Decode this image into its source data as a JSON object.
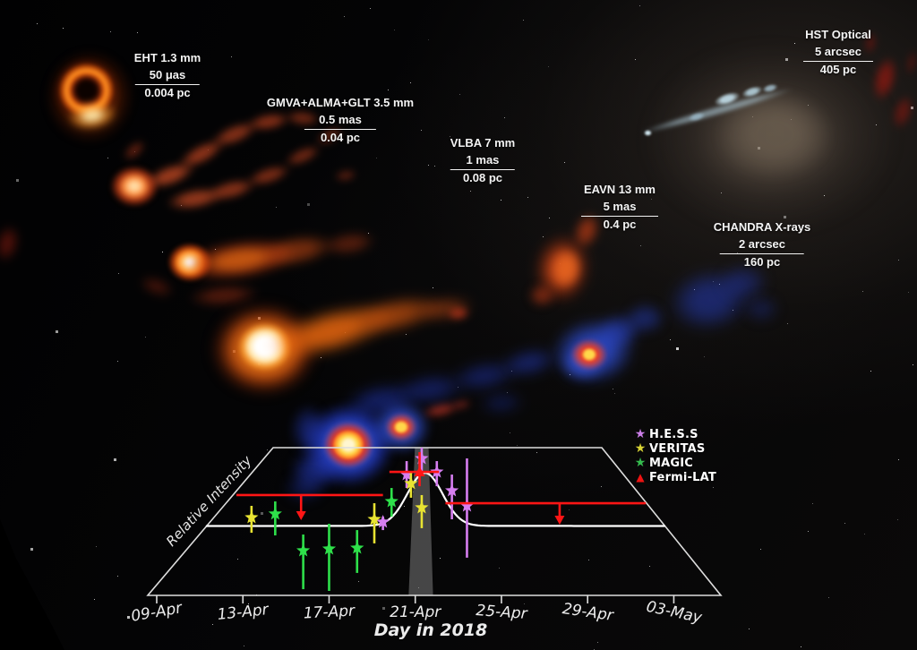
{
  "figure": {
    "xaxis_title": "Day in 2018",
    "yaxis_title": "Relative Intensity"
  },
  "scale_labels": [
    {
      "id": "eht",
      "title": "EHT 1.3 mm",
      "size": "50 μas",
      "physical": "0.004 pc"
    },
    {
      "id": "gmva",
      "title": "GMVA+ALMA+GLT 3.5 mm",
      "size": "0.5 mas",
      "physical": "0.04 pc"
    },
    {
      "id": "vlba",
      "title": "VLBA 7 mm",
      "size": "1 mas",
      "physical": "0.08 pc"
    },
    {
      "id": "eavn",
      "title": "EAVN 13 mm",
      "size": "5 mas",
      "physical": "0.4 pc"
    },
    {
      "id": "chandra",
      "title": "CHANDRA X-rays",
      "size": "2 arcsec",
      "physical": "160 pc"
    },
    {
      "id": "hst",
      "title": "HST Optical",
      "size": "5 arcsec",
      "physical": "405 pc"
    }
  ],
  "legend": [
    {
      "label": "H.E.S.S",
      "marker": "star",
      "color": "#cb7ee8"
    },
    {
      "label": "VERITAS",
      "marker": "star",
      "color": "#d8d435"
    },
    {
      "label": "MAGIC",
      "marker": "star",
      "color": "#35bb4e"
    },
    {
      "label": "Fermi-LAT",
      "marker": "triangle",
      "color": "#ee1312"
    }
  ],
  "chart_data": {
    "type": "line",
    "xlabel": "Day in 2018",
    "ylabel": "Relative Intensity",
    "x_tick_labels": [
      "09-Apr",
      "13-Apr",
      "17-Apr",
      "21-Apr",
      "25-Apr",
      "29-Apr",
      "03-May"
    ],
    "x_tick_days": [
      9,
      13,
      17,
      21,
      25,
      29,
      33
    ],
    "x_range_days": [
      8.6,
      35.2
    ],
    "y_range": [
      0,
      1
    ],
    "grid": false,
    "legend_position": "upper right",
    "highlight_band_days": [
      20.9,
      21.7
    ],
    "light_curve": {
      "color": "#ffffff",
      "baseline": 0.47,
      "peak_amplitude": 0.36,
      "peak_day": 21.45,
      "sigma_days": 1.15
    },
    "series": [
      {
        "name": "H.E.S.S",
        "marker": "star",
        "color": "#d67ef0",
        "points": [
          {
            "day": 19.5,
            "v": 0.497,
            "lo": 0.442,
            "hi": 0.533
          },
          {
            "day": 20.6,
            "v": 0.818,
            "lo": 0.727,
            "hi": 0.909
          },
          {
            "day": 21.3,
            "v": 0.927,
            "lo": 0.83,
            "hi": 1.0
          },
          {
            "day": 22.0,
            "v": 0.836,
            "lo": 0.739,
            "hi": 0.909
          },
          {
            "day": 22.7,
            "v": 0.709,
            "lo": 0.515,
            "hi": 0.818
          },
          {
            "day": 23.4,
            "v": 0.606,
            "lo": 0.255,
            "hi": 0.927
          }
        ]
      },
      {
        "name": "VERITAS",
        "marker": "star",
        "color": "#e8e332",
        "points": [
          {
            "day": 13.4,
            "v": 0.527,
            "lo": 0.424,
            "hi": 0.606
          },
          {
            "day": 19.1,
            "v": 0.515,
            "lo": 0.352,
            "hi": 0.624
          },
          {
            "day": 20.8,
            "v": 0.758,
            "lo": 0.661,
            "hi": 0.83
          },
          {
            "day": 21.3,
            "v": 0.594,
            "lo": 0.455,
            "hi": 0.679
          }
        ]
      },
      {
        "name": "MAGIC",
        "marker": "star",
        "color": "#2ee04a",
        "points": [
          {
            "day": 14.5,
            "v": 0.552,
            "lo": 0.406,
            "hi": 0.636
          },
          {
            "day": 15.8,
            "v": 0.303,
            "lo": 0.042,
            "hi": 0.412
          },
          {
            "day": 17.0,
            "v": 0.315,
            "lo": 0.03,
            "hi": 0.485
          },
          {
            "day": 18.3,
            "v": 0.321,
            "lo": 0.152,
            "hi": 0.442
          },
          {
            "day": 19.9,
            "v": 0.636,
            "lo": 0.533,
            "hi": 0.727
          }
        ]
      },
      {
        "name": "Fermi-LAT",
        "marker": "triangle",
        "color": "#ff1515",
        "detections": [
          {
            "day_start": 19.8,
            "day_end": 22.1,
            "level": 0.836,
            "err_day": 21.2,
            "err_lo": 0.739,
            "err_hi": 0.97
          }
        ],
        "upper_limits": [
          {
            "day_start": 12.7,
            "day_end": 19.5,
            "level": 0.679,
            "arrow_day": 15.7,
            "arrow_to": 0.515
          },
          {
            "day_start": 22.4,
            "day_end": 31.7,
            "level": 0.624,
            "arrow_day": 27.7,
            "arrow_to": 0.485
          }
        ]
      }
    ]
  }
}
